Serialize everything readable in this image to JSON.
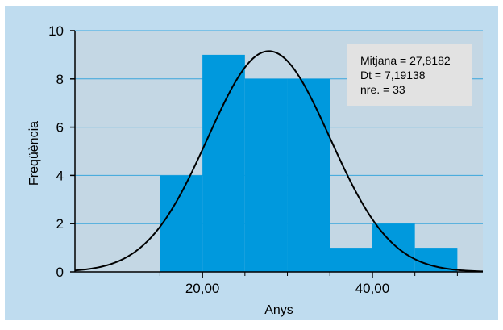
{
  "chart_data": {
    "type": "bar",
    "bins": [
      {
        "start": 15,
        "end": 20,
        "count": 4
      },
      {
        "start": 20,
        "end": 25,
        "count": 9
      },
      {
        "start": 25,
        "end": 30,
        "count": 8
      },
      {
        "start": 30,
        "end": 35,
        "count": 8
      },
      {
        "start": 35,
        "end": 40,
        "count": 1
      },
      {
        "start": 40,
        "end": 45,
        "count": 2
      },
      {
        "start": 45,
        "end": 50,
        "count": 1
      }
    ],
    "xlabel": "Anys",
    "ylabel": "Freqüència",
    "xlim": [
      5,
      53
    ],
    "ylim": [
      0,
      10
    ],
    "x_ticks": [
      {
        "value": 20,
        "label": "20,00"
      },
      {
        "value": 40,
        "label": "40,00"
      }
    ],
    "x_minor_ticks": [
      15,
      25,
      30,
      35,
      45,
      50
    ],
    "y_ticks": [
      0,
      2,
      4,
      6,
      8,
      10
    ],
    "grid": "horizontal",
    "normal_curve": {
      "mean": 27.8182,
      "sd": 7.19138,
      "n": 33,
      "bin_width": 5
    },
    "stats": {
      "mean_line": "Mitjana = 27,8182",
      "sd_line": "Dt = 7,19138",
      "n_line": "nre. = 33"
    },
    "colors": {
      "outer_background": "#bfdcef",
      "plot_background": "#c4d7e4",
      "bar": "#0099dd",
      "grid": "#3aa6dc",
      "curve": "#000000",
      "stats_box": "#e2e2e2"
    }
  }
}
